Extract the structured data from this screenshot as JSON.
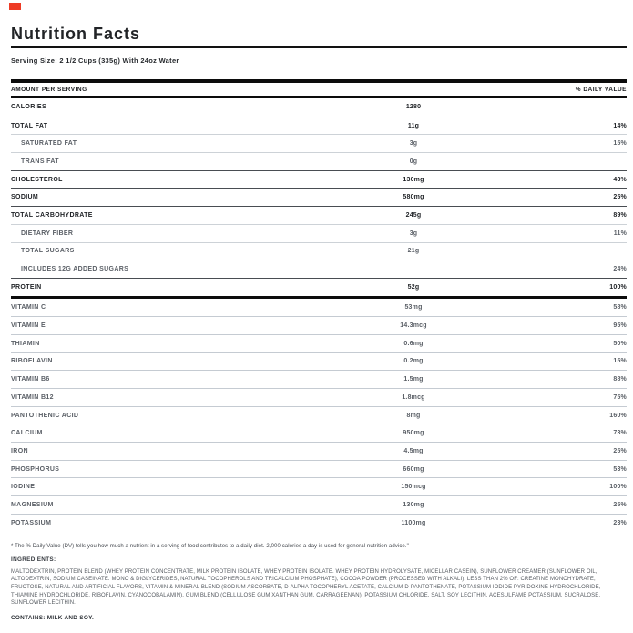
{
  "header": {
    "title": "Nutrition Facts",
    "serving_size": "Serving Size: 2 1/2 Cups (335g) With 24oz Water"
  },
  "table": {
    "header": {
      "left": "AMOUNT PER SERVING",
      "right": "% DAILY VALUE"
    },
    "rows": [
      {
        "label": "CALORIES",
        "amount": "1280",
        "dv": "",
        "style": "major"
      },
      {
        "label": "TOTAL FAT",
        "amount": "11g",
        "dv": "14%",
        "style": "major"
      },
      {
        "label": "SATURATED FAT",
        "amount": "3g",
        "dv": "15%",
        "style": "sub"
      },
      {
        "label": "TRANS FAT",
        "amount": "0g",
        "dv": "",
        "style": "sub"
      },
      {
        "label": "CHOLESTEROL",
        "amount": "130mg",
        "dv": "43%",
        "style": "major"
      },
      {
        "label": "SODIUM",
        "amount": "580mg",
        "dv": "25%",
        "style": "major"
      },
      {
        "label": "TOTAL CARBOHYDRATE",
        "amount": "245g",
        "dv": "89%",
        "style": "major"
      },
      {
        "label": "DIETARY FIBER",
        "amount": "3g",
        "dv": "11%",
        "style": "sub"
      },
      {
        "label": "TOTAL SUGARS",
        "amount": "21g",
        "dv": "",
        "style": "sub"
      },
      {
        "label": "INCLUDES 12G ADDED SUGARS",
        "amount": "",
        "dv": "24%",
        "style": "sub"
      },
      {
        "label": "PROTEIN",
        "amount": "52g",
        "dv": "100%",
        "style": "major"
      }
    ],
    "micronutrients": [
      {
        "label": "VITAMIN C",
        "amount": "53mg",
        "dv": "58%"
      },
      {
        "label": "VITAMIN E",
        "amount": "14.3mcg",
        "dv": "95%"
      },
      {
        "label": "THIAMIN",
        "amount": "0.6mg",
        "dv": "50%"
      },
      {
        "label": "RIBOFLAVIN",
        "amount": "0.2mg",
        "dv": "15%"
      },
      {
        "label": "VITAMIN B6",
        "amount": "1.5mg",
        "dv": "88%"
      },
      {
        "label": "VITAMIN B12",
        "amount": "1.8mcg",
        "dv": "75%"
      },
      {
        "label": "PANTOTHENIC ACID",
        "amount": "8mg",
        "dv": "160%"
      },
      {
        "label": "CALCIUM",
        "amount": "950mg",
        "dv": "73%"
      },
      {
        "label": "IRON",
        "amount": "4.5mg",
        "dv": "25%"
      },
      {
        "label": "PHOSPHORUS",
        "amount": "660mg",
        "dv": "53%"
      },
      {
        "label": "IODINE",
        "amount": "150mcg",
        "dv": "100%"
      },
      {
        "label": "MAGNESIUM",
        "amount": "130mg",
        "dv": "25%"
      },
      {
        "label": "POTASSIUM",
        "amount": "1100mg",
        "dv": "23%"
      }
    ]
  },
  "footnote": "* The % Daily Value (DV) tells you how much a nutrient in a serving of food contributes to a daily diet. 2,000 calories a day is used for general nutrition advice.\"",
  "ingredients": {
    "heading": "INGREDIENTS:",
    "text": "MALTODEXTRIN, PROTEIN BLEND (WHEY PROTEIN CONCENTRATE, MILK PROTEIN ISOLATE, WHEY PROTEIN ISOLATE. WHEY PROTEIN HYDROLYSATE, MICELLAR CASEIN), SUNFLOWER CREAMER (SUNFLOWER OIL, ALTODEXTRIN, SODIUM CASEINATE. MONO & DIGLYCERIDES, NATURAL TOCOPHEROLS AND TRICALCIUM PHOSPHATE), COCOA POWDER (PROCESSED WITH ALKALI). LESS THAN 2% OF: CREATINE MONOHYDRATE, FRUCTOSE, NATURAL AND ARTIFICIAL FLAVORS, VITAMIN & MINERAL BLEND (SODIUM ASCORBATE, D-ALPHA TOCOPHERYL ACETATE, CALCIUM-D-PANTOTHENATE, POTASSIUM IODIDE PYRIDOXINE HYDROCHLORIDE, THIAMINE HYDROCHLORIDE. RIBOFLAVIN, CYANOCOBALAMIN), GUM BLEND (CELLULOSE GUM XANTHAN GUM, CARRAGEENAN), POTASSIUM CHLORIDE, SALT, SOY LECITHIN, ACESULFAME POTASSIUM, SUCRALOSE, SUNFLOWER LECITHIN."
  },
  "contains": "CONTAINS: MILK AND SOY.",
  "colors": {
    "accent_red": "#ee3b25",
    "bar_black": "#0c0c0c",
    "muted_text": "#5a5f66"
  }
}
